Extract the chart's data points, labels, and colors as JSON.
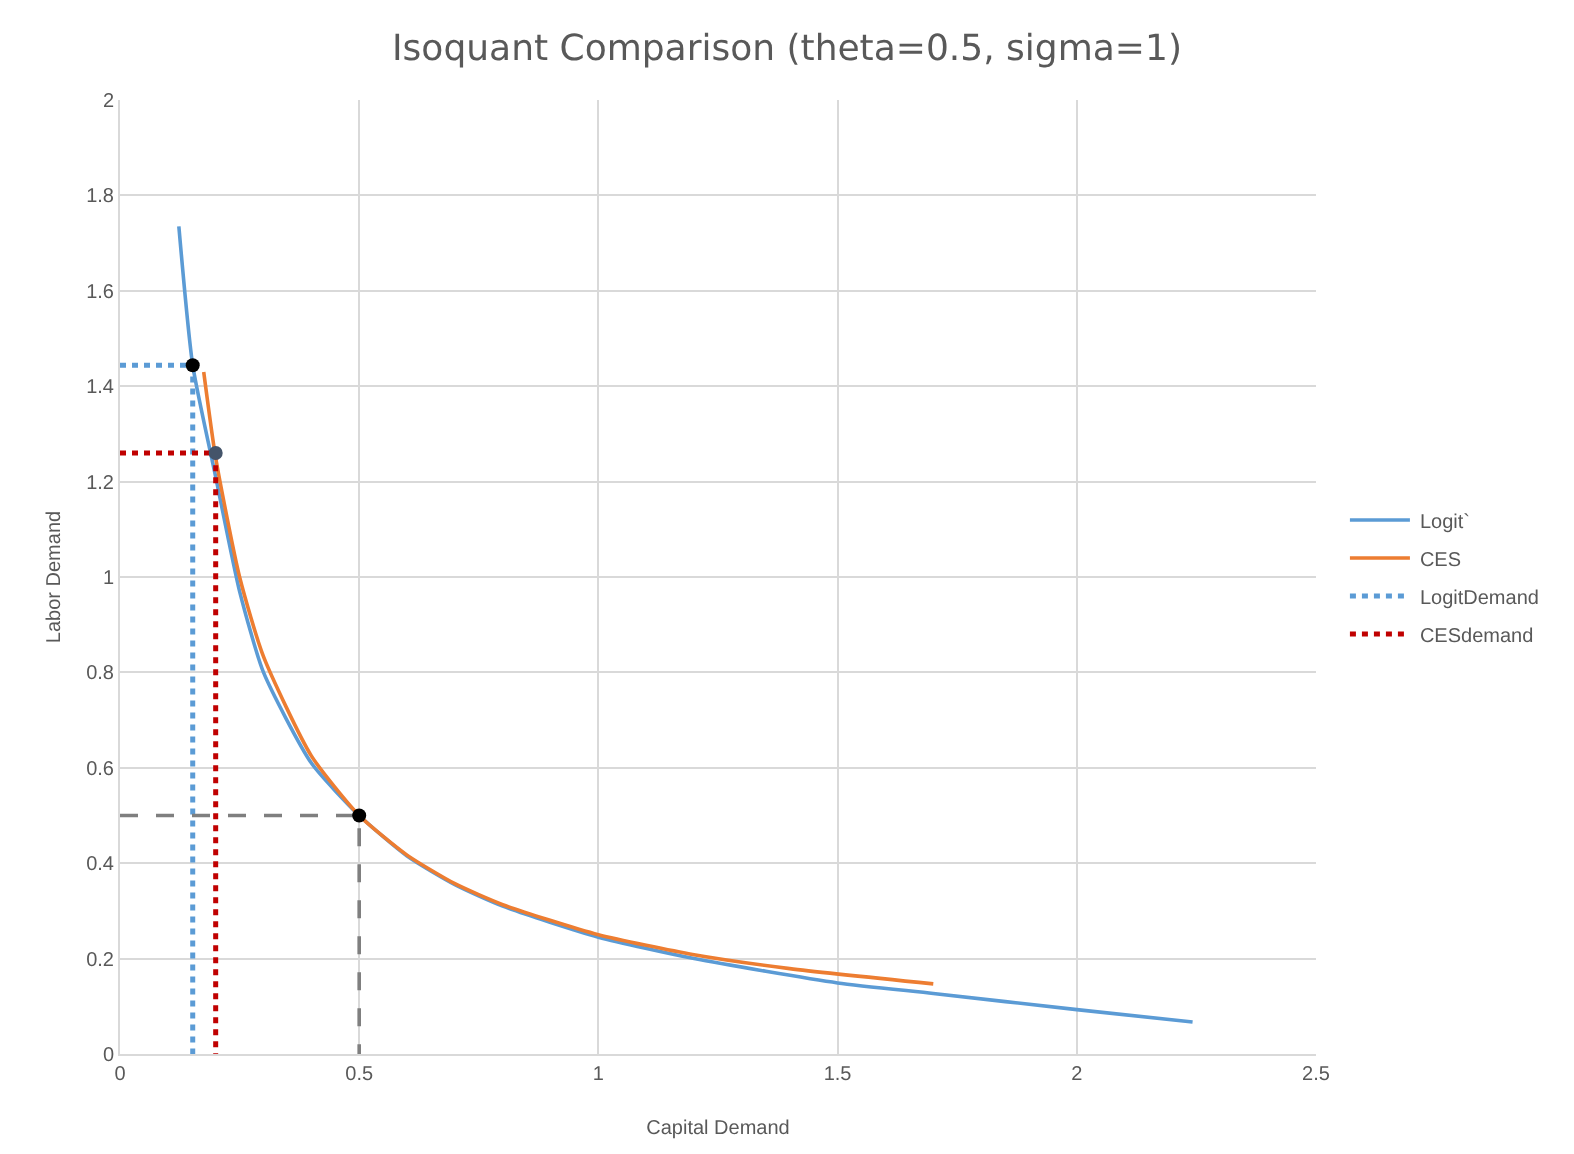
{
  "chart_data": {
    "type": "line",
    "title": "Isoquant Comparison (theta=0.5, sigma=1)",
    "xlabel": "Capital Demand",
    "ylabel": "Labor Demand",
    "xlim": [
      0,
      2.5
    ],
    "xticks": [
      0,
      0.5,
      1,
      1.5,
      2,
      2.5
    ],
    "ylim": [
      0,
      2
    ],
    "yticks": [
      0,
      0.2,
      0.4,
      0.6,
      0.8,
      1,
      1.2,
      1.4,
      1.6,
      1.8,
      2
    ],
    "grid": true,
    "legend": "right",
    "marker": "none",
    "series": [
      {
        "name": "Logit`",
        "color": "#5b9bd5",
        "line_style": "solid",
        "x": [
          0.123,
          0.152,
          0.2,
          0.25,
          0.3,
          0.4,
          0.5,
          0.6,
          0.7,
          0.8,
          1,
          1.2,
          1.5,
          1.7,
          2,
          2.242
        ],
        "values": [
          1.735,
          1.444,
          1.21,
          0.97,
          0.8,
          0.61,
          0.5,
          0.415,
          0.355,
          0.31,
          0.245,
          0.2,
          0.149,
          0.127,
          0.093,
          0.067
        ]
      },
      {
        "name": "CES",
        "color": "#ed7d31",
        "line_style": "solid",
        "x": [
          0.175,
          0.2,
          0.25,
          0.3,
          0.4,
          0.5,
          0.6,
          0.7,
          0.8,
          1,
          1.2,
          1.4,
          1.7
        ],
        "values": [
          1.43,
          1.25,
          1,
          0.833,
          0.625,
          0.5,
          0.417,
          0.357,
          0.313,
          0.25,
          0.208,
          0.179,
          0.147
        ]
      },
      {
        "name": "LogitDemand",
        "color": "#5b9bd5",
        "line_style": "dotted",
        "x": [
          0,
          0.152,
          0.152
        ],
        "values": [
          1.444,
          1.444,
          0
        ]
      },
      {
        "name": "CESdemand",
        "color": "#c00000",
        "line_style": "dotted",
        "x": [
          0,
          0.2,
          0.2
        ],
        "values": [
          1.26,
          1.26,
          0
        ]
      },
      {
        "color": "#7f7f7f",
        "line_style": "dashed",
        "x": [
          0,
          0.5,
          0.5
        ],
        "values": [
          0.5,
          0.5,
          0
        ]
      },
      {
        "type": "scatter",
        "marker": "circle",
        "colors": [
          "#000000",
          "#44546a",
          "#000000"
        ],
        "x": [
          0.152,
          0.2,
          0.5
        ],
        "values": [
          1.444,
          1.26,
          0.5
        ]
      }
    ]
  }
}
